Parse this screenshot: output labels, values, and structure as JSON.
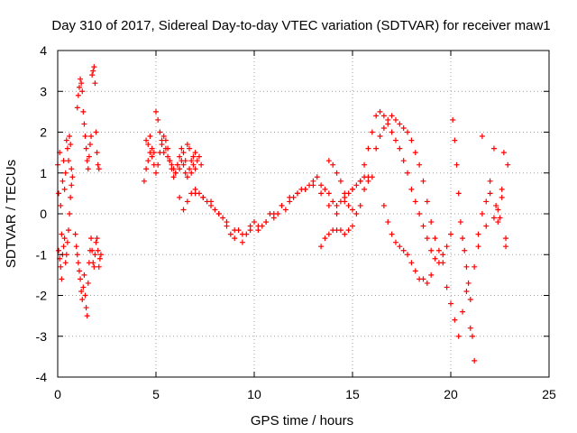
{
  "chart_data": {
    "type": "scatter",
    "title": "Day 310 of 2017, Sidereal Day-to-day VTEC variation (SDTVAR) for receiver maw1",
    "xlabel": "GPS time / hours",
    "ylabel": "SDTVAR / TECUs",
    "xlim": [
      0,
      25
    ],
    "ylim": [
      -4,
      4
    ],
    "xticks": [
      0,
      5,
      10,
      15,
      20,
      25
    ],
    "yticks": [
      -4,
      -3,
      -2,
      -1,
      0,
      1,
      2,
      3,
      4
    ],
    "xtick_labels": [
      "0",
      "5",
      "10",
      "15",
      "20",
      "25"
    ],
    "ytick_labels": [
      "-4",
      "-3",
      "-2",
      "-1",
      "0",
      "1",
      "2",
      "3",
      "4"
    ],
    "grid": true,
    "marker": "+",
    "color": "#ff0000",
    "series": [
      {
        "name": "maw1",
        "x": [
          0.0,
          0.05,
          0.1,
          0.15,
          0.2,
          0.25,
          0.3,
          0.35,
          0.4,
          0.45,
          0.5,
          0.55,
          0.6,
          0.65,
          0.7,
          0.75,
          0.05,
          0.1,
          0.15,
          0.2,
          0.25,
          0.3,
          0.35,
          0.4,
          0.45,
          0.5,
          0.55,
          0.6,
          0.65,
          0.7,
          1.0,
          1.05,
          1.1,
          1.15,
          1.2,
          1.25,
          1.3,
          1.35,
          1.4,
          1.45,
          1.5,
          1.55,
          1.6,
          1.65,
          1.7,
          1.75,
          1.8,
          1.85,
          1.9,
          1.95,
          2.0,
          2.05,
          2.1,
          0.9,
          0.95,
          1.0,
          1.05,
          1.1,
          1.15,
          1.2,
          1.25,
          1.3,
          1.35,
          1.4,
          1.45,
          1.5,
          1.55,
          1.6,
          1.65,
          1.7,
          1.75,
          1.8,
          1.85,
          1.9,
          1.95,
          2.0,
          2.05,
          2.1,
          2.15,
          2.2,
          4.4,
          4.5,
          4.6,
          4.7,
          4.8,
          4.9,
          5.0,
          5.1,
          5.2,
          5.3,
          5.4,
          5.5,
          5.6,
          5.7,
          5.8,
          5.9,
          6.0,
          6.1,
          6.2,
          6.3,
          6.4,
          6.5,
          6.6,
          6.7,
          6.8,
          6.9,
          7.0,
          7.1,
          7.2,
          7.3,
          4.5,
          4.6,
          4.7,
          4.8,
          4.9,
          5.0,
          5.1,
          5.2,
          5.3,
          5.4,
          5.5,
          5.6,
          5.7,
          5.8,
          5.9,
          6.0,
          6.1,
          6.2,
          6.3,
          6.4,
          6.5,
          6.6,
          6.7,
          6.8,
          6.9,
          7.0,
          6.2,
          6.4,
          6.6,
          6.8,
          7.0,
          7.2,
          7.4,
          7.6,
          7.8,
          8.0,
          8.2,
          8.4,
          8.6,
          8.8,
          9.0,
          9.2,
          9.4,
          9.6,
          9.8,
          10.0,
          10.2,
          10.4,
          10.6,
          10.8,
          11.0,
          11.2,
          11.4,
          11.6,
          11.8,
          12.0,
          12.2,
          12.4,
          12.6,
          12.8,
          13.0,
          13.2,
          13.4,
          13.6,
          13.8,
          14.0,
          14.2,
          14.4,
          14.6,
          14.8,
          15.0,
          15.2,
          15.4,
          15.6,
          15.8,
          16.0,
          7.0,
          7.4,
          7.8,
          8.2,
          8.6,
          9.0,
          9.4,
          9.8,
          10.2,
          10.6,
          11.0,
          11.4,
          11.8,
          12.2,
          12.6,
          13.0,
          13.4,
          13.8,
          14.2,
          14.6,
          15.0,
          15.4,
          15.8,
          13.4,
          13.6,
          13.8,
          14.0,
          14.2,
          14.4,
          14.6,
          14.8,
          15.0,
          13.8,
          14.0,
          14.2,
          14.4,
          14.6,
          14.8,
          15.0,
          15.2,
          15.4,
          15.6,
          15.6,
          15.8,
          16.0,
          16.2,
          16.4,
          16.6,
          16.8,
          17.0,
          17.2,
          17.4,
          17.6,
          17.8,
          18.0,
          18.2,
          18.4,
          18.6,
          18.8,
          19.0,
          19.2,
          19.4,
          19.6,
          19.8,
          20.0,
          16.2,
          16.4,
          16.6,
          16.8,
          17.0,
          17.2,
          17.4,
          17.6,
          17.8,
          18.0,
          18.2,
          18.4,
          18.6,
          18.8,
          19.0,
          19.2,
          19.4,
          16.6,
          16.8,
          17.0,
          17.2,
          17.4,
          17.6,
          17.8,
          18.0,
          18.2,
          18.4,
          18.6,
          18.8,
          19.0,
          19.6,
          19.8,
          20.0,
          20.2,
          20.4,
          20.6,
          20.8,
          21.0,
          21.2,
          21.4,
          21.6,
          21.8,
          22.0,
          22.2,
          22.4,
          22.6,
          22.8,
          20.1,
          20.2,
          20.3,
          20.4,
          20.5,
          20.6,
          20.7,
          20.8,
          20.9,
          21.0,
          21.1,
          21.2,
          21.4,
          21.6,
          21.8,
          22.0,
          22.2,
          22.4,
          22.6,
          22.8,
          22.9,
          22.7,
          22.5,
          22.3
        ],
        "y": [
          1.2,
          0.5,
          1.5,
          0.2,
          -0.5,
          0.8,
          1.3,
          0.6,
          1.0,
          1.8,
          1.6,
          1.3,
          1.9,
          1.7,
          1.1,
          0.9,
          -0.9,
          -1.1,
          -1.3,
          -1.6,
          -1.0,
          -0.8,
          -0.6,
          -1.2,
          -1.0,
          -0.7,
          -0.4,
          0.0,
          0.4,
          0.7,
          2.6,
          2.9,
          3.1,
          3.3,
          3.2,
          3.0,
          2.5,
          2.2,
          1.9,
          1.6,
          1.3,
          1.1,
          1.4,
          1.7,
          1.9,
          3.4,
          3.5,
          3.6,
          3.2,
          2.0,
          1.5,
          1.2,
          1.1,
          -0.5,
          -0.8,
          -1.0,
          -1.2,
          -1.4,
          -1.6,
          -1.9,
          -2.1,
          -1.8,
          -1.5,
          -2.0,
          -2.3,
          -2.5,
          -1.7,
          -1.2,
          -0.9,
          -0.6,
          -0.9,
          -1.2,
          -1.3,
          -1.0,
          -0.7,
          -0.6,
          -0.9,
          -1.3,
          -1.1,
          -1.0,
          0.8,
          1.8,
          1.7,
          1.9,
          1.6,
          1.5,
          2.5,
          2.3,
          2.0,
          1.8,
          1.5,
          1.6,
          1.4,
          1.3,
          1.2,
          1.1,
          1.0,
          1.2,
          1.4,
          1.6,
          1.5,
          1.3,
          1.7,
          1.6,
          1.3,
          1.4,
          1.5,
          1.3,
          1.4,
          1.2,
          1.1,
          1.3,
          1.5,
          1.4,
          1.2,
          1.0,
          1.2,
          1.5,
          1.7,
          1.9,
          1.8,
          1.6,
          1.3,
          1.1,
          0.9,
          1.0,
          1.2,
          1.1,
          1.3,
          1.2,
          1.0,
          0.9,
          1.1,
          1.0,
          1.2,
          1.1,
          0.4,
          0.1,
          0.3,
          0.5,
          0.6,
          0.5,
          0.4,
          0.3,
          0.2,
          0.1,
          0.0,
          -0.1,
          -0.3,
          -0.5,
          -0.6,
          -0.4,
          -0.7,
          -0.5,
          -0.3,
          -0.2,
          -0.4,
          -0.3,
          -0.2,
          0.0,
          -0.1,
          0.0,
          0.2,
          0.1,
          0.3,
          0.4,
          0.5,
          0.6,
          0.6,
          0.7,
          0.8,
          0.9,
          0.7,
          0.6,
          0.5,
          0.3,
          0.2,
          0.3,
          0.4,
          0.5,
          0.6,
          0.7,
          0.8,
          0.9,
          0.8,
          0.9,
          0.5,
          0.4,
          0.3,
          0.0,
          -0.2,
          -0.4,
          -0.5,
          -0.4,
          -0.3,
          -0.2,
          0.0,
          0.2,
          0.4,
          0.5,
          0.6,
          0.7,
          0.5,
          0.2,
          0.0,
          0.3,
          0.6,
          0.8,
          0.9,
          -0.8,
          -0.6,
          -0.5,
          -0.4,
          -0.4,
          -0.4,
          -0.5,
          -0.4,
          -0.3,
          1.3,
          1.2,
          1.0,
          0.8,
          0.5,
          0.2,
          0.1,
          0.0,
          0.2,
          0.6,
          1.2,
          1.6,
          2.0,
          2.4,
          2.5,
          2.4,
          2.2,
          2.0,
          1.8,
          1.6,
          1.3,
          1.0,
          0.6,
          0.3,
          0.0,
          -0.3,
          -0.6,
          -0.9,
          -1.1,
          -1.2,
          -1.0,
          -0.8,
          -0.5,
          1.6,
          1.9,
          2.1,
          2.3,
          2.4,
          2.3,
          2.2,
          2.1,
          2.0,
          1.8,
          1.5,
          1.2,
          0.8,
          0.3,
          -0.2,
          -0.6,
          -0.9,
          0.2,
          -0.2,
          -0.5,
          -0.7,
          -0.8,
          -0.9,
          -1.0,
          -1.2,
          -1.4,
          -1.6,
          -1.6,
          -1.7,
          -1.5,
          -1.2,
          -1.8,
          -2.2,
          -2.6,
          -3.0,
          -2.4,
          -1.9,
          -2.8,
          -1.3,
          -0.8,
          1.9,
          -0.3,
          0.5,
          -0.1,
          0.1,
          0.6,
          -0.8,
          2.3,
          1.8,
          1.2,
          0.5,
          -0.2,
          -0.6,
          -0.9,
          -1.3,
          -1.7,
          -2.1,
          -3.0,
          -3.6,
          -0.5,
          0.0,
          0.3,
          0.8,
          1.6,
          -0.2,
          0.4,
          -0.6,
          1.2,
          1.5,
          -0.1,
          0.2
        ]
      }
    ]
  }
}
